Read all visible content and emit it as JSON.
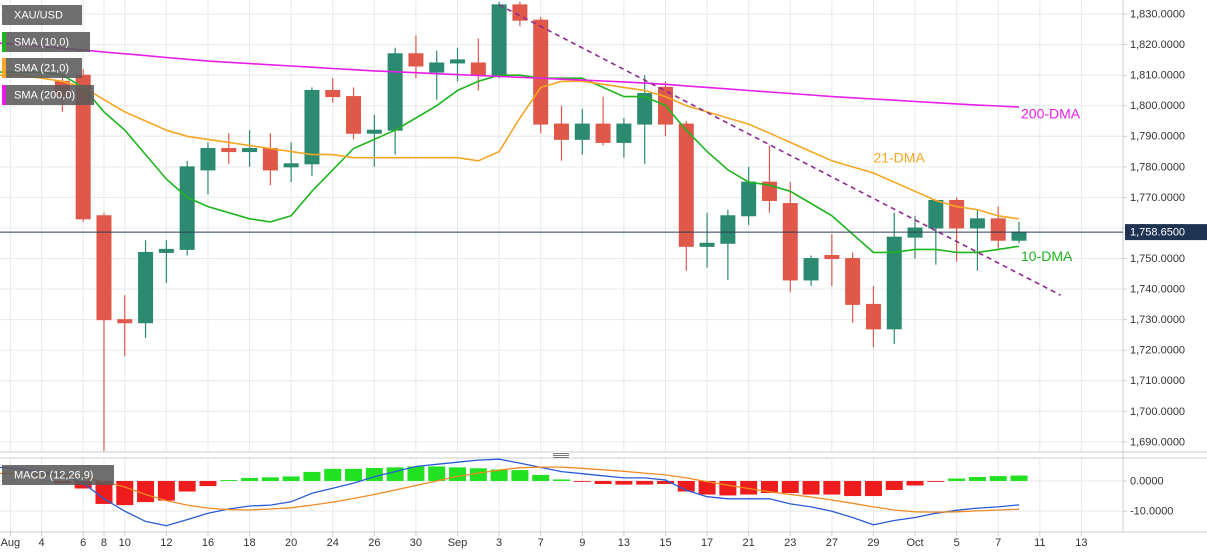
{
  "chart_data": [
    {
      "type": "candlestick",
      "title": "XAU/USD",
      "x": [
        0,
        1,
        2,
        3,
        4,
        5,
        6,
        7,
        8,
        9,
        10,
        11,
        12,
        13,
        14,
        15,
        16,
        17,
        18,
        19,
        20,
        21,
        22,
        23,
        24,
        25,
        26,
        27,
        28,
        29,
        30,
        31,
        32,
        33,
        34,
        35,
        36,
        37,
        38,
        39,
        40,
        41,
        42,
        43,
        44,
        45,
        46,
        47,
        48,
        49
      ],
      "xlim": [
        0,
        54
      ],
      "ylim": [
        1686.7,
        1834.6
      ],
      "grid": true,
      "yticks": [
        {
          "value": 1830,
          "label": "1,830.0000"
        },
        {
          "value": 1820,
          "label": "1,820.0000"
        },
        {
          "value": 1810,
          "label": "1,810.0000"
        },
        {
          "value": 1800,
          "label": "1,800.0000"
        },
        {
          "value": 1790,
          "label": "1,790.0000"
        },
        {
          "value": 1780,
          "label": "1,780.0000"
        },
        {
          "value": 1770,
          "label": "1,770.0000"
        },
        {
          "value": 1760,
          "label": "1,760.0000"
        },
        {
          "value": 1750,
          "label": "1,750.0000"
        },
        {
          "value": 1740,
          "label": "1,740.0000"
        },
        {
          "value": 1730,
          "label": "1,730.0000"
        },
        {
          "value": 1720,
          "label": "1,720.0000"
        },
        {
          "value": 1710,
          "label": "1,710.0000"
        },
        {
          "value": 1700,
          "label": "1,700.0000"
        },
        {
          "value": 1690,
          "label": "1,690.0000"
        }
      ],
      "up_color": "#2b8a70",
      "down_color": "#e0584a",
      "open": [
        null,
        null,
        null,
        1808,
        1810,
        1764,
        1730,
        1729,
        1752,
        1753,
        1779,
        1786,
        1785,
        1786,
        1780,
        1781,
        1805,
        1803,
        1791,
        1792,
        1817,
        1811,
        1814,
        1814,
        1810,
        1833,
        1828,
        1794,
        1789,
        1794,
        1788,
        1794,
        1806,
        1794,
        1754,
        1755,
        1764,
        1775,
        1768,
        1743,
        1751,
        1750,
        1735,
        1727,
        1757,
        1760,
        1769,
        1760,
        1763,
        1756
      ],
      "high": [
        null,
        null,
        null,
        1810,
        1812,
        1765,
        1738,
        1756,
        1756,
        1782,
        1788,
        1791,
        1792,
        1791,
        1788,
        1806,
        1809,
        1806,
        1797,
        1819,
        1823,
        1818,
        1819,
        1822,
        1834,
        1834,
        1829,
        1800,
        1799,
        1803,
        1796,
        1810,
        1808,
        1795,
        1765,
        1766,
        1780,
        1787,
        1775,
        1751,
        1758,
        1752,
        1741,
        1765,
        1764,
        1769,
        1770,
        1766,
        1767,
        1762
      ],
      "low": [
        null,
        null,
        null,
        1798,
        1762,
        1687,
        1718,
        1724,
        1742,
        1751,
        1771,
        1781,
        1780,
        1774,
        1775,
        1777,
        1801,
        1789,
        1780,
        1784,
        1809,
        1802,
        1808,
        1805,
        1809,
        1826,
        1791,
        1782,
        1784,
        1787,
        1783,
        1781,
        1790,
        1746,
        1747,
        1743,
        1761,
        1765,
        1739,
        1741,
        1741,
        1729,
        1721,
        1722,
        1750,
        1748,
        1749,
        1746,
        1753,
        1755
      ],
      "close": [
        null,
        null,
        null,
        1803,
        1763,
        1730,
        1729,
        1752,
        1753,
        1780,
        1786,
        1785,
        1786,
        1779,
        1781,
        1805,
        1803,
        1791,
        1792,
        1817,
        1813,
        1814,
        1815,
        1810,
        1833,
        1828,
        1794,
        1789,
        1794,
        1788,
        1794,
        1804,
        1794,
        1754,
        1755,
        1764,
        1775,
        1769,
        1743,
        1750,
        1750,
        1735,
        1727,
        1757,
        1760,
        1769,
        1760,
        1763,
        1756,
        1758.65
      ],
      "lines": [
        {
          "name": "SMA (10,0)",
          "label": "10-DMA",
          "color": "#1fb51f",
          "values": [
            1811,
            1811,
            1811,
            1810,
            1806,
            1798,
            1792,
            1784,
            1776,
            1770,
            1767,
            1765,
            1763,
            1762,
            1764,
            1772,
            1779,
            1786,
            1789,
            1792,
            1796,
            1800,
            1805,
            1808,
            1810,
            1810,
            1809,
            1809,
            1809,
            1806,
            1803,
            1803,
            1800,
            1792,
            1785,
            1779,
            1775,
            1774,
            1772,
            1768,
            1764,
            1758,
            1752,
            1752,
            1753,
            1753,
            1752,
            1752,
            1753,
            1754
          ]
        },
        {
          "name": "SMA (21,0)",
          "label": "21-DMA",
          "color": "#f5a623",
          "values": [
            1810,
            1810,
            1809,
            1808,
            1806,
            1802,
            1798,
            1795,
            1792,
            1790,
            1789,
            1788,
            1787,
            1786,
            1785,
            1784,
            1784,
            1783,
            1783,
            1783,
            1783,
            1783,
            1783,
            1782,
            1785,
            1796,
            1806,
            1808,
            1808,
            1807,
            1806,
            1805,
            1803,
            1800,
            1798,
            1796,
            1794,
            1791,
            1788,
            1785,
            1782,
            1780,
            1778,
            1775,
            1772,
            1769,
            1767,
            1766,
            1764,
            1763
          ]
        },
        {
          "name": "SMA (200,0)",
          "label": "200-DMA",
          "color": "#e81ee8",
          "values": [
            1820.5,
            1820,
            1819.4,
            1818.8,
            1818.2,
            1817.6,
            1817,
            1816.4,
            1815.8,
            1815.2,
            1814.6,
            1814.2,
            1813.8,
            1813.4,
            1813,
            1812.6,
            1812.2,
            1811.8,
            1811.4,
            1811.1,
            1810.8,
            1810.5,
            1810.2,
            1809.9,
            1809.6,
            1809.3,
            1809,
            1808.7,
            1808.4,
            1808.1,
            1807.8,
            1807.4,
            1807,
            1806.5,
            1806,
            1805.5,
            1805,
            1804.5,
            1804,
            1803.5,
            1803,
            1802.6,
            1802.2,
            1801.8,
            1801.4,
            1801,
            1800.6,
            1800.2,
            1799.9,
            1799.6
          ]
        }
      ],
      "trendline": {
        "x": [
          24,
          51
        ],
        "values": [
          1833,
          1738
        ],
        "color": "#8e2a8e"
      },
      "last_price": {
        "value": 1758.65,
        "label": "1,758.6500"
      }
    },
    {
      "type": "macd",
      "title": "MACD (12,26,9)",
      "x": [
        0,
        1,
        2,
        3,
        4,
        5,
        6,
        7,
        8,
        9,
        10,
        11,
        12,
        13,
        14,
        15,
        16,
        17,
        18,
        19,
        20,
        21,
        22,
        23,
        24,
        25,
        26,
        27,
        28,
        29,
        30,
        31,
        32,
        33,
        34,
        35,
        36,
        37,
        38,
        39,
        40,
        41,
        42,
        43,
        44,
        45,
        46,
        47,
        48,
        49
      ],
      "xlim": [
        0,
        54
      ],
      "ylim": [
        -16.9,
        7.6
      ],
      "grid": true,
      "yticks": [
        {
          "value": 0,
          "label": "0.0000"
        },
        {
          "value": -10,
          "label": "-10.0000"
        }
      ],
      "xticks": [
        {
          "value": 0.5,
          "label": "Aug"
        },
        {
          "value": 2,
          "label": "4"
        },
        {
          "value": 4,
          "label": "6"
        },
        {
          "value": 5,
          "label": "8"
        },
        {
          "value": 6,
          "label": "10"
        },
        {
          "value": 8,
          "label": "12"
        },
        {
          "value": 10,
          "label": "16"
        },
        {
          "value": 12,
          "label": "18"
        },
        {
          "value": 14,
          "label": "20"
        },
        {
          "value": 16,
          "label": "24"
        },
        {
          "value": 18,
          "label": "26"
        },
        {
          "value": 20,
          "label": "30"
        },
        {
          "value": 22,
          "label": "Sep"
        },
        {
          "value": 24,
          "label": "3"
        },
        {
          "value": 26,
          "label": "7"
        },
        {
          "value": 28,
          "label": "9"
        },
        {
          "value": 30,
          "label": "13"
        },
        {
          "value": 32,
          "label": "15"
        },
        {
          "value": 34,
          "label": "17"
        },
        {
          "value": 36,
          "label": "21"
        },
        {
          "value": 38,
          "label": "23"
        },
        {
          "value": 40,
          "label": "27"
        },
        {
          "value": 42,
          "label": "29"
        },
        {
          "value": 44,
          "label": "Oct"
        },
        {
          "value": 46,
          "label": "5"
        },
        {
          "value": 48,
          "label": "7"
        },
        {
          "value": 50,
          "label": "11"
        },
        {
          "value": 52,
          "label": "13"
        }
      ],
      "histogram": {
        "up_color": "#22e022",
        "down_color": "#ee1c1c",
        "values": [
          null,
          null,
          null,
          -0.8,
          -2.5,
          -7.6,
          -8,
          -7,
          -6.5,
          -3.5,
          -1.7,
          0.3,
          1,
          1.2,
          1.5,
          3,
          4,
          4,
          4.3,
          4.5,
          4.8,
          4.8,
          4.5,
          4.2,
          3.8,
          3.6,
          2,
          0.5,
          -0.3,
          -1,
          -1.2,
          -1.2,
          -1,
          -3.5,
          -4.5,
          -4.8,
          -4.5,
          -4,
          -4,
          -4.5,
          -4.5,
          -5,
          -5,
          -3,
          -1.5,
          -0.3,
          0.8,
          1.3,
          1.6,
          1.8
        ]
      },
      "series": [
        {
          "color": "#2a5bd7",
          "values": [
            4.5,
            4,
            3,
            1.7,
            -0.7,
            -5.9,
            -10,
            -13.4,
            -14.8,
            -12.8,
            -10.7,
            -9.3,
            -8.3,
            -8,
            -6.9,
            -4.1,
            -2.4,
            -0.7,
            1.4,
            3.1,
            4.8,
            5.5,
            6.2,
            6.9,
            7.2,
            5.9,
            4.5,
            3.1,
            2.4,
            1.7,
            1,
            1,
            0.3,
            -3.1,
            -5.2,
            -5.9,
            -5.9,
            -5.9,
            -7.6,
            -8.6,
            -10,
            -12.1,
            -14.5,
            -13.1,
            -12.1,
            -10.7,
            -9.7,
            -9,
            -8.6,
            -7.9
          ]
        },
        {
          "color": "#f08a24",
          "values": [
            2.5,
            2.3,
            2.1,
            1.8,
            1.2,
            -0.3,
            -2,
            -4.5,
            -6.5,
            -8,
            -9,
            -9.5,
            -9.6,
            -9.3,
            -8.9,
            -8,
            -7,
            -5.8,
            -4.5,
            -3,
            -1.5,
            0,
            1.5,
            2.6,
            3.6,
            4.4,
            4.6,
            4.6,
            4.2,
            3.7,
            3.2,
            2.6,
            2,
            1,
            -0.2,
            -1.4,
            -2.5,
            -3.6,
            -4.5,
            -5.3,
            -6.3,
            -7.4,
            -8.6,
            -9.6,
            -10.2,
            -10.3,
            -10.2,
            -9.9,
            -9.6,
            -9.4
          ]
        }
      ]
    }
  ]
}
